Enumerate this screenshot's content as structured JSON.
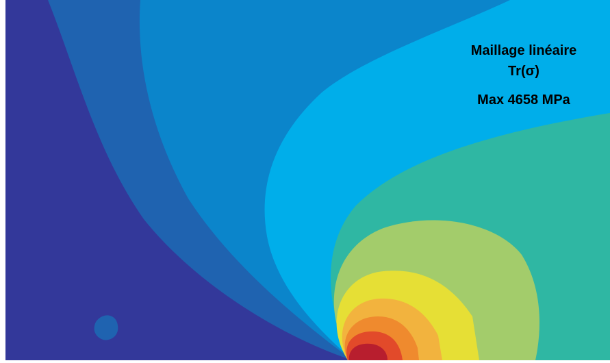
{
  "annotations": {
    "line1": "Maillage linéaire",
    "line2": "Tr(σ)",
    "line3": "Max 4658 MPa"
  }
}
